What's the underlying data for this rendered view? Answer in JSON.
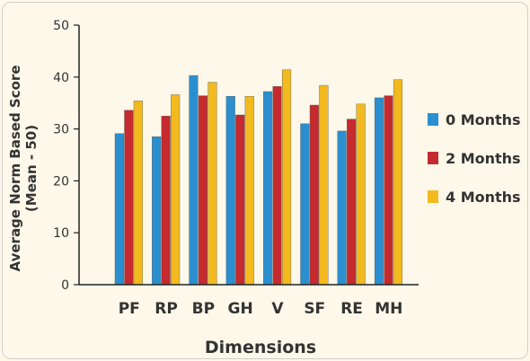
{
  "chart_data": {
    "type": "bar",
    "title": "",
    "xlabel": "Dimensions",
    "ylabel": "Average Norm Based Score (Mean - 50)",
    "ylabel_lines": [
      "Average Norm Based Score",
      "(Mean - 50)"
    ],
    "ylim": [
      0,
      50
    ],
    "yticks": [
      0,
      10,
      20,
      30,
      40,
      50
    ],
    "grid": false,
    "legend_position": "right",
    "categories": [
      "PF",
      "RP",
      "BP",
      "GH",
      "V",
      "SF",
      "RE",
      "MH"
    ],
    "series": [
      {
        "name": "0 Months",
        "color": "#2b8fcf",
        "values": [
          29.1,
          28.5,
          40.3,
          36.3,
          37.2,
          31.0,
          29.6,
          36.0
        ]
      },
      {
        "name": "2 Months",
        "color": "#c42a2e",
        "values": [
          33.6,
          32.5,
          36.4,
          32.7,
          38.2,
          34.6,
          31.9,
          36.4
        ]
      },
      {
        "name": "4 Months",
        "color": "#f2ba1e",
        "values": [
          35.4,
          36.6,
          39.0,
          36.3,
          41.4,
          38.4,
          34.8,
          39.5
        ]
      }
    ]
  }
}
